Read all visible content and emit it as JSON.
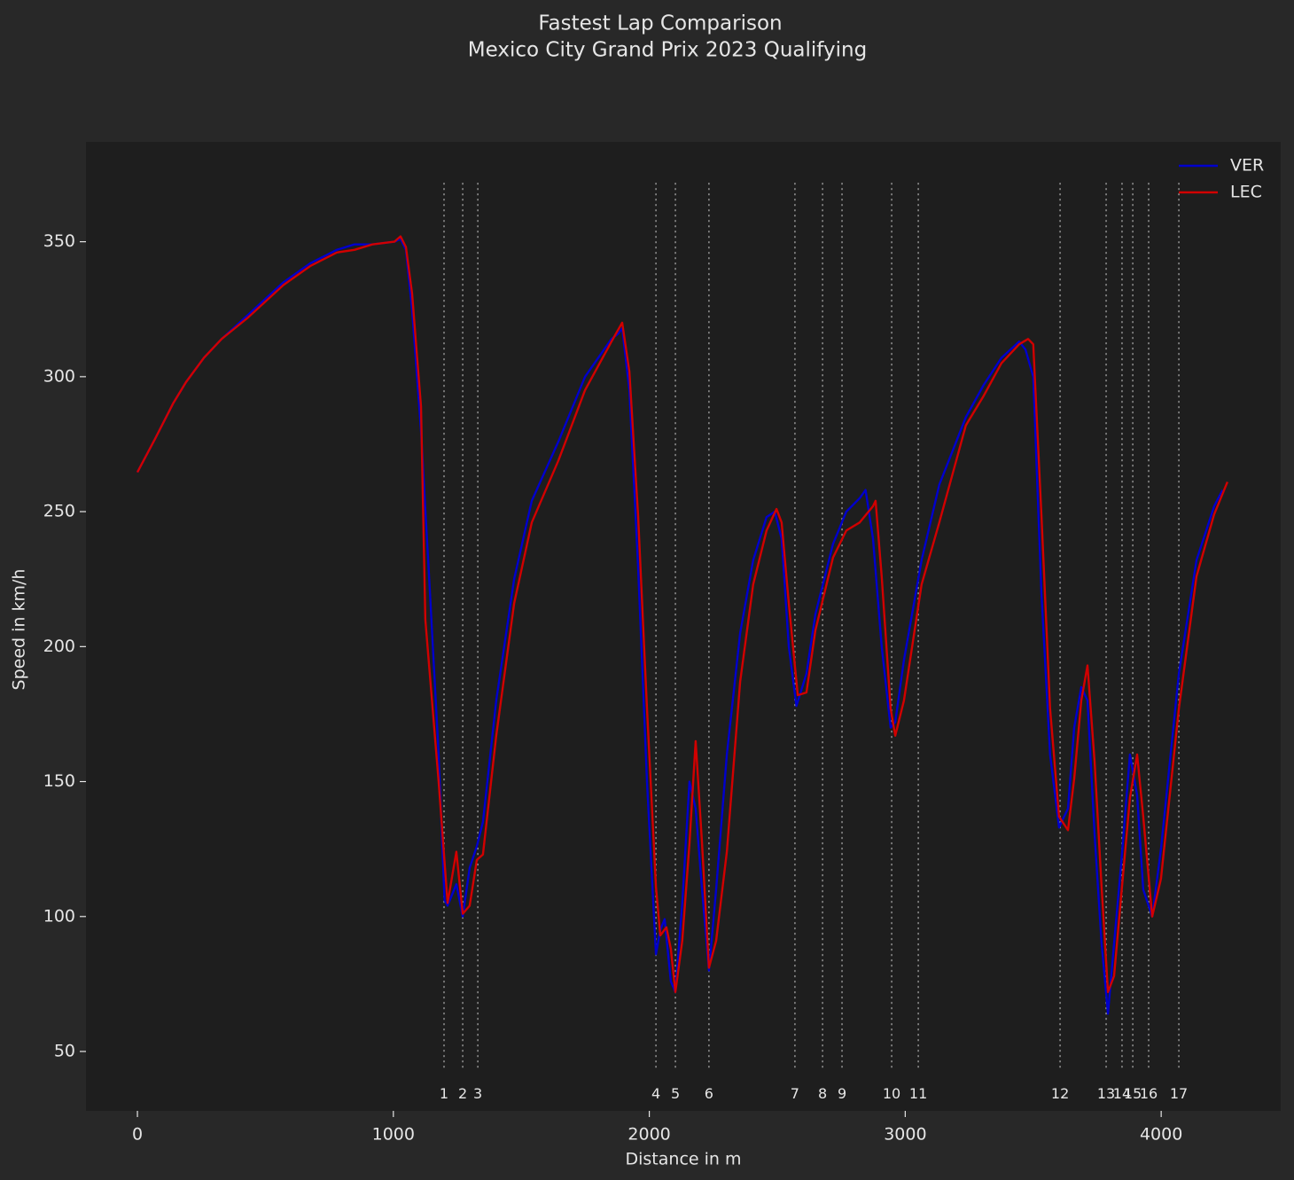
{
  "chart_data": {
    "type": "line",
    "title": "Fastest Lap Comparison",
    "subtitle": "Mexico City Grand Prix 2023 Qualifying",
    "x_label": "Distance in m",
    "y_label": "Speed in km/h",
    "xlim": [
      -201,
      4467
    ],
    "ylim": [
      28,
      387
    ],
    "xticks": [
      0,
      1000,
      2000,
      3000,
      4000
    ],
    "yticks": [
      50,
      100,
      150,
      200,
      250,
      300,
      350
    ],
    "grid": false,
    "legend": "upper right",
    "series": [
      {
        "name": "VER",
        "color": "#0000cd",
        "x": [
          0,
          69,
          139,
          190,
          260,
          329,
          433,
          571,
          675,
          779,
          848,
          918,
          1004,
          1028,
          1049,
          1073,
          1108,
          1143,
          1177,
          1200,
          1212,
          1246,
          1271,
          1298,
          1326,
          1350,
          1402,
          1472,
          1541,
          1645,
          1749,
          1852,
          1880,
          1894,
          1922,
          1956,
          1991,
          2026,
          2043,
          2060,
          2084,
          2102,
          2129,
          2157,
          2181,
          2206,
          2233,
          2261,
          2303,
          2355,
          2406,
          2458,
          2490,
          2517,
          2545,
          2575,
          2614,
          2649,
          2718,
          2770,
          2822,
          2845,
          2874,
          2908,
          2943,
          2961,
          2995,
          3064,
          3133,
          3237,
          3307,
          3376,
          3445,
          3470,
          3500,
          3532,
          3566,
          3601,
          3636,
          3660,
          3688,
          3712,
          3740,
          3767,
          3792,
          3816,
          3844,
          3878,
          3906,
          3930,
          3965,
          3999,
          4069,
          4138,
          4207,
          4240
        ],
        "values": [
          264.6,
          277,
          290,
          298,
          307,
          314,
          323,
          335,
          342,
          347,
          349,
          349,
          350,
          351,
          347,
          325,
          280,
          220,
          160,
          106,
          104,
          112,
          100,
          118,
          126,
          135,
          180,
          225,
          254,
          276,
          300,
          314,
          316,
          318,
          295,
          230,
          150,
          86,
          95,
          99,
          76,
          72,
          105,
          150,
          140,
          110,
          80,
          110,
          160,
          205,
          232,
          248,
          250,
          240,
          200,
          178,
          190,
          212,
          238,
          250,
          255,
          258,
          240,
          200,
          170,
          172,
          195,
          232,
          260,
          285,
          297,
          307,
          313,
          310,
          300,
          220,
          160,
          133,
          140,
          170,
          185,
          180,
          130,
          90,
          64,
          90,
          120,
          160,
          145,
          110,
          100,
          125,
          190,
          232,
          252,
          258
        ]
      },
      {
        "name": "LEC",
        "color": "#d10000",
        "x": [
          0,
          69,
          139,
          190,
          260,
          329,
          433,
          571,
          675,
          779,
          848,
          918,
          1004,
          1028,
          1049,
          1073,
          1108,
          1125,
          1177,
          1212,
          1246,
          1271,
          1298,
          1326,
          1350,
          1402,
          1472,
          1541,
          1645,
          1749,
          1852,
          1894,
          1922,
          1956,
          1991,
          2026,
          2043,
          2067,
          2084,
          2102,
          2129,
          2157,
          2181,
          2206,
          2233,
          2261,
          2303,
          2355,
          2406,
          2458,
          2497,
          2517,
          2545,
          2580,
          2614,
          2649,
          2718,
          2770,
          2822,
          2874,
          2884,
          2908,
          2943,
          2961,
          2995,
          3064,
          3133,
          3237,
          3307,
          3376,
          3445,
          3480,
          3500,
          3532,
          3566,
          3601,
          3636,
          3660,
          3688,
          3712,
          3740,
          3767,
          3792,
          3816,
          3844,
          3878,
          3906,
          3930,
          3965,
          3999,
          4069,
          4138,
          4207,
          4259
        ],
        "values": [
          264.6,
          277,
          290,
          298,
          307,
          314,
          322,
          334,
          341,
          346,
          347,
          349,
          350,
          352,
          348,
          331,
          289,
          210,
          150,
          105,
          124,
          101,
          104,
          121,
          123,
          167,
          216,
          246,
          269,
          295,
          313,
          320,
          302,
          249,
          177,
          111,
          93,
          96,
          88,
          72,
          91,
          127,
          165,
          127,
          81,
          91,
          124,
          187,
          223,
          243,
          251,
          246,
          216,
          182,
          183,
          206,
          233,
          243,
          246,
          252,
          254,
          226,
          177,
          167,
          180,
          223,
          246,
          282,
          293,
          305,
          312,
          314,
          312,
          249,
          177,
          137,
          132,
          151,
          180,
          193,
          157,
          111,
          72,
          78,
          108,
          144,
          160,
          137,
          100,
          114,
          177,
          226,
          249,
          261
        ]
      }
    ],
    "corners": {
      "distance": [
        1198,
        1271,
        1330,
        2026,
        2102,
        2233,
        2569,
        2677,
        2753,
        2947,
        3051,
        3605,
        3785,
        3847,
        3889,
        3951,
        4069
      ],
      "labels": [
        "1",
        "2",
        "3",
        "4",
        "5",
        "6",
        "7",
        "8",
        "9",
        "10",
        "11",
        "12",
        "13",
        "14",
        "15",
        "16",
        "17"
      ]
    }
  }
}
